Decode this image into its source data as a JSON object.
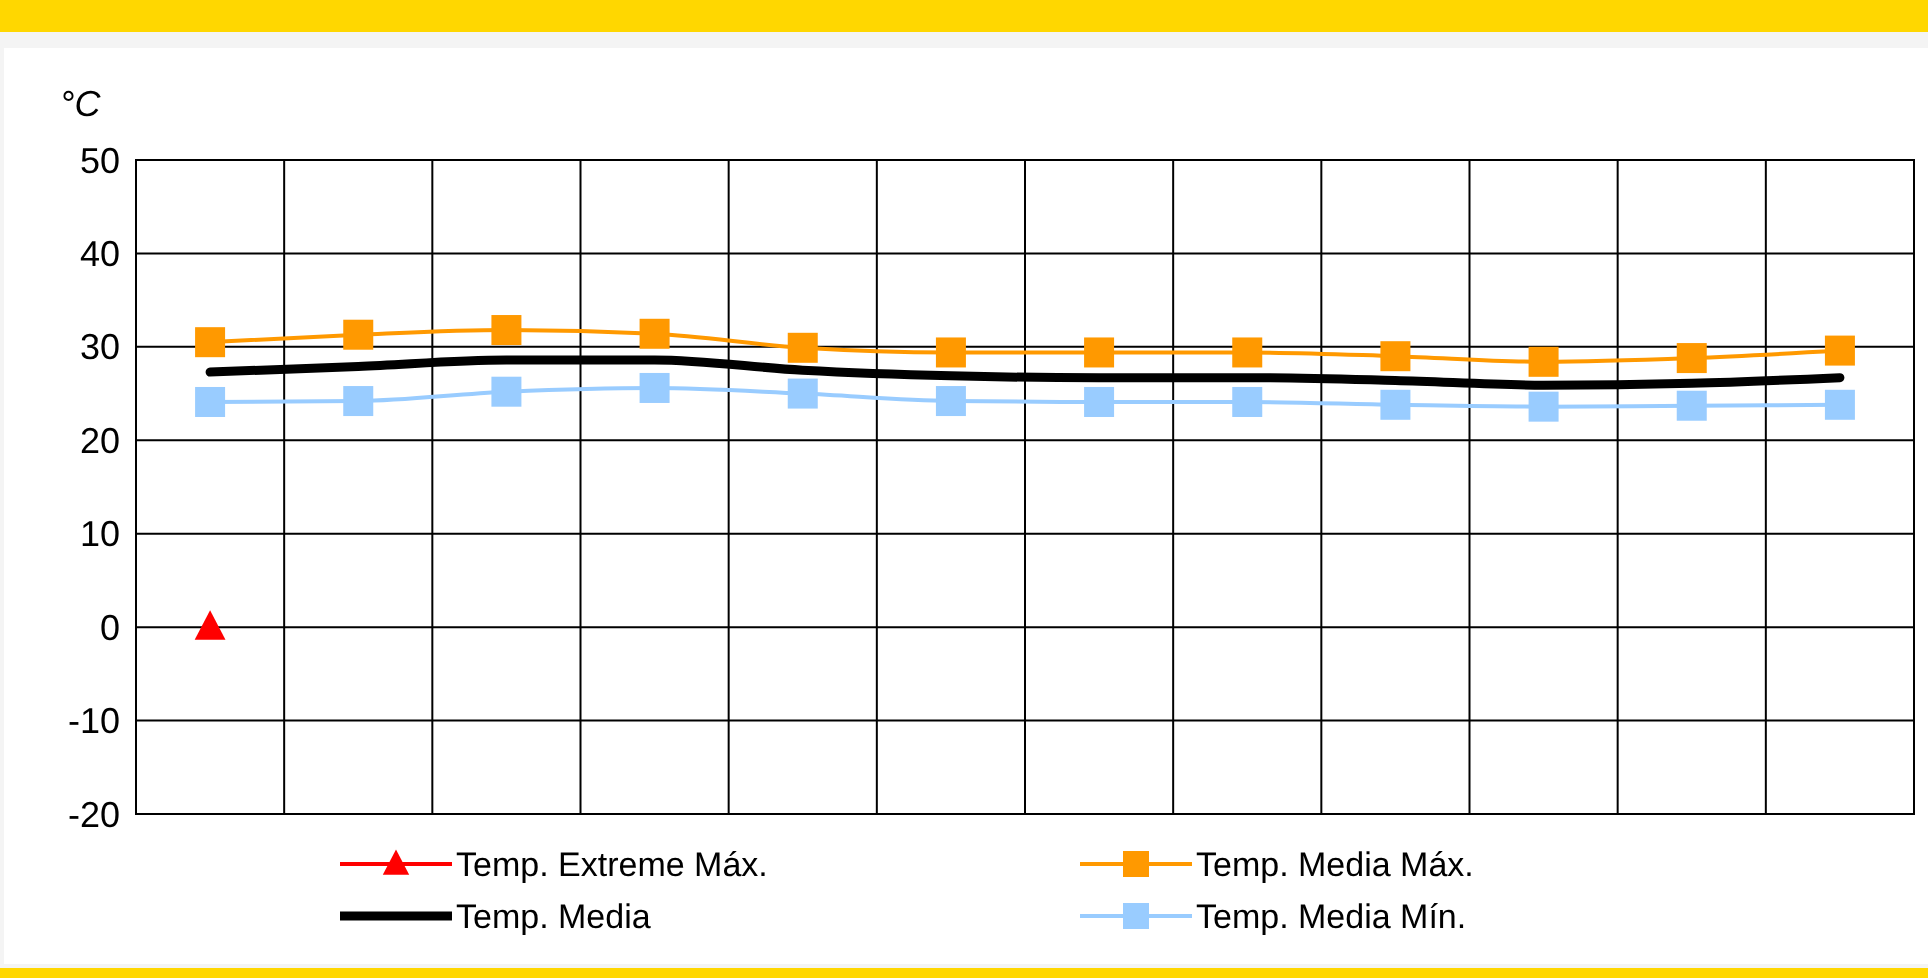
{
  "chart_data": {
    "type": "line",
    "ylabel": "°C",
    "categories": [
      null,
      null,
      null,
      null,
      null,
      null,
      null,
      null,
      null,
      null,
      null,
      null
    ],
    "ylim": [
      -20,
      50
    ],
    "yticks": [
      -20,
      -10,
      0,
      10,
      20,
      30,
      40,
      50
    ],
    "grid": true,
    "legend": "bottom",
    "series": [
      {
        "name": "Temp. Extreme Máx.",
        "color": "#ff0000",
        "marker": "triangle",
        "values": [
          0,
          null,
          null,
          null,
          null,
          null,
          null,
          null,
          null,
          null,
          null,
          null
        ]
      },
      {
        "name": "Temp. Media Máx.",
        "color": "#ff9900",
        "marker": "square",
        "values": [
          30.5,
          31.3,
          31.8,
          31.4,
          29.9,
          29.4,
          29.4,
          29.4,
          29.0,
          28.4,
          28.8,
          29.6
        ]
      },
      {
        "name": "Temp. Media",
        "color": "#000000",
        "marker": "none",
        "values": [
          27.3,
          27.9,
          28.6,
          28.6,
          27.5,
          26.9,
          26.7,
          26.7,
          26.4,
          25.9,
          26.1,
          26.7
        ]
      },
      {
        "name": "Temp. Media Mín.",
        "color": "#99ccff",
        "marker": "square",
        "values": [
          24.1,
          24.2,
          25.2,
          25.6,
          25.0,
          24.2,
          24.1,
          24.1,
          23.8,
          23.6,
          23.7,
          23.8
        ]
      }
    ]
  }
}
